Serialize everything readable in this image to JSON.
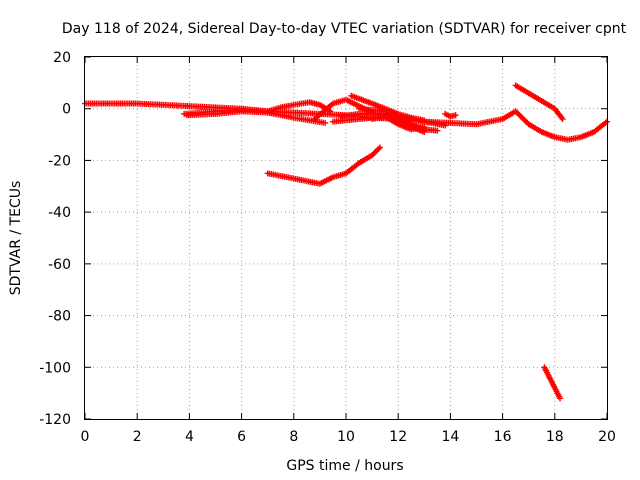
{
  "chart_data": {
    "type": "scatter",
    "title": "Day 118 of 2024, Sidereal Day-to-day VTEC variation (SDTVAR) for receiver cpnt",
    "xlabel": "GPS time / hours",
    "ylabel": "SDTVAR / TECUs",
    "xlim": [
      0,
      20
    ],
    "ylim": [
      -120,
      20
    ],
    "xticks": [
      0,
      2,
      4,
      6,
      8,
      10,
      12,
      14,
      16,
      18,
      20
    ],
    "yticks": [
      20,
      0,
      -20,
      -40,
      -60,
      -80,
      -100,
      -120
    ],
    "grid": true,
    "series": [
      {
        "name": "SDTVAR",
        "color": "#ff0000",
        "marker": "+",
        "segments": [
          [
            [
              0.0,
              2.0
            ],
            [
              1.0,
              2.0
            ],
            [
              2.0,
              2.0
            ],
            [
              3.0,
              1.5
            ],
            [
              4.0,
              1.0
            ],
            [
              5.0,
              0.5
            ],
            [
              6.0,
              0.0
            ],
            [
              7.0,
              -1.0
            ],
            [
              8.0,
              -1.5
            ],
            [
              9.0,
              -2.0
            ],
            [
              10.0,
              -2.5
            ],
            [
              11.0,
              -3.5
            ],
            [
              12.0,
              -4.0
            ],
            [
              13.0,
              -5.0
            ],
            [
              14.0,
              -5.5
            ],
            [
              15.0,
              -6.0
            ],
            [
              16.0,
              -4.0
            ],
            [
              16.5,
              -1.0
            ],
            [
              17.0,
              -6.0
            ],
            [
              17.5,
              -9.0
            ],
            [
              18.0,
              -11.0
            ],
            [
              18.5,
              -12.0
            ],
            [
              19.0,
              -11.0
            ],
            [
              19.5,
              -9.0
            ],
            [
              20.0,
              -5.0
            ]
          ],
          [
            [
              3.8,
              -2.0
            ],
            [
              5.0,
              -1.0
            ],
            [
              6.0,
              -0.5
            ],
            [
              7.0,
              -1.0
            ],
            [
              7.5,
              0.5
            ],
            [
              8.0,
              1.5
            ],
            [
              8.6,
              2.5
            ],
            [
              9.0,
              1.5
            ],
            [
              9.4,
              -1.0
            ]
          ],
          [
            [
              3.9,
              -2.5
            ],
            [
              5.0,
              -2.0
            ],
            [
              6.0,
              -1.0
            ],
            [
              7.0,
              -1.5
            ],
            [
              7.5,
              -2.5
            ],
            [
              8.0,
              -3.5
            ],
            [
              8.6,
              -4.5
            ],
            [
              9.2,
              -5.5
            ]
          ],
          [
            [
              8.8,
              -4.0
            ],
            [
              9.5,
              2.0
            ],
            [
              10.0,
              3.5
            ],
            [
              10.5,
              1.0
            ],
            [
              11.0,
              -1.5
            ],
            [
              11.5,
              -3.0
            ],
            [
              12.0,
              -5.0
            ]
          ],
          [
            [
              9.5,
              -5.0
            ],
            [
              10.5,
              -4.0
            ],
            [
              11.5,
              -3.0
            ],
            [
              12.5,
              -3.5
            ],
            [
              13.0,
              -4.5
            ]
          ],
          [
            [
              9.8,
              -3.0
            ],
            [
              10.5,
              -2.0
            ],
            [
              11.5,
              -2.0
            ],
            [
              12.0,
              -4.0
            ],
            [
              12.5,
              -7.0
            ],
            [
              13.0,
              -9.0
            ]
          ],
          [
            [
              10.2,
              5.0
            ],
            [
              11.0,
              2.0
            ],
            [
              12.0,
              -2.0
            ],
            [
              12.5,
              -3.5
            ],
            [
              13.0,
              -5.0
            ],
            [
              13.8,
              -6.5
            ]
          ],
          [
            [
              10.5,
              0.0
            ],
            [
              11.5,
              -1.0
            ],
            [
              12.0,
              -3.0
            ],
            [
              12.5,
              -6.0
            ],
            [
              13.0,
              -8.0
            ],
            [
              13.5,
              -8.5
            ]
          ],
          [
            [
              11.0,
              -4.0
            ],
            [
              11.5,
              -3.0
            ],
            [
              12.0,
              -6.0
            ],
            [
              12.5,
              -8.0
            ],
            [
              13.0,
              -7.0
            ]
          ],
          [
            [
              13.8,
              -2.0
            ],
            [
              14.0,
              -3.0
            ],
            [
              14.2,
              -2.5
            ]
          ],
          [
            [
              7.0,
              -25.0
            ],
            [
              7.5,
              -26.0
            ],
            [
              8.0,
              -27.0
            ],
            [
              8.5,
              -28.0
            ],
            [
              9.0,
              -29.0
            ],
            [
              9.5,
              -26.5
            ],
            [
              10.0,
              -25.0
            ],
            [
              10.5,
              -21.0
            ],
            [
              11.0,
              -18.0
            ],
            [
              11.3,
              -15.0
            ]
          ],
          [
            [
              16.5,
              9.0
            ],
            [
              17.0,
              6.0
            ],
            [
              17.5,
              3.0
            ],
            [
              18.0,
              0.0
            ],
            [
              18.3,
              -4.0
            ]
          ],
          [
            [
              17.6,
              -100.0
            ],
            [
              17.8,
              -104.0
            ],
            [
              18.0,
              -108.0
            ],
            [
              18.2,
              -112.0
            ]
          ]
        ]
      }
    ]
  }
}
